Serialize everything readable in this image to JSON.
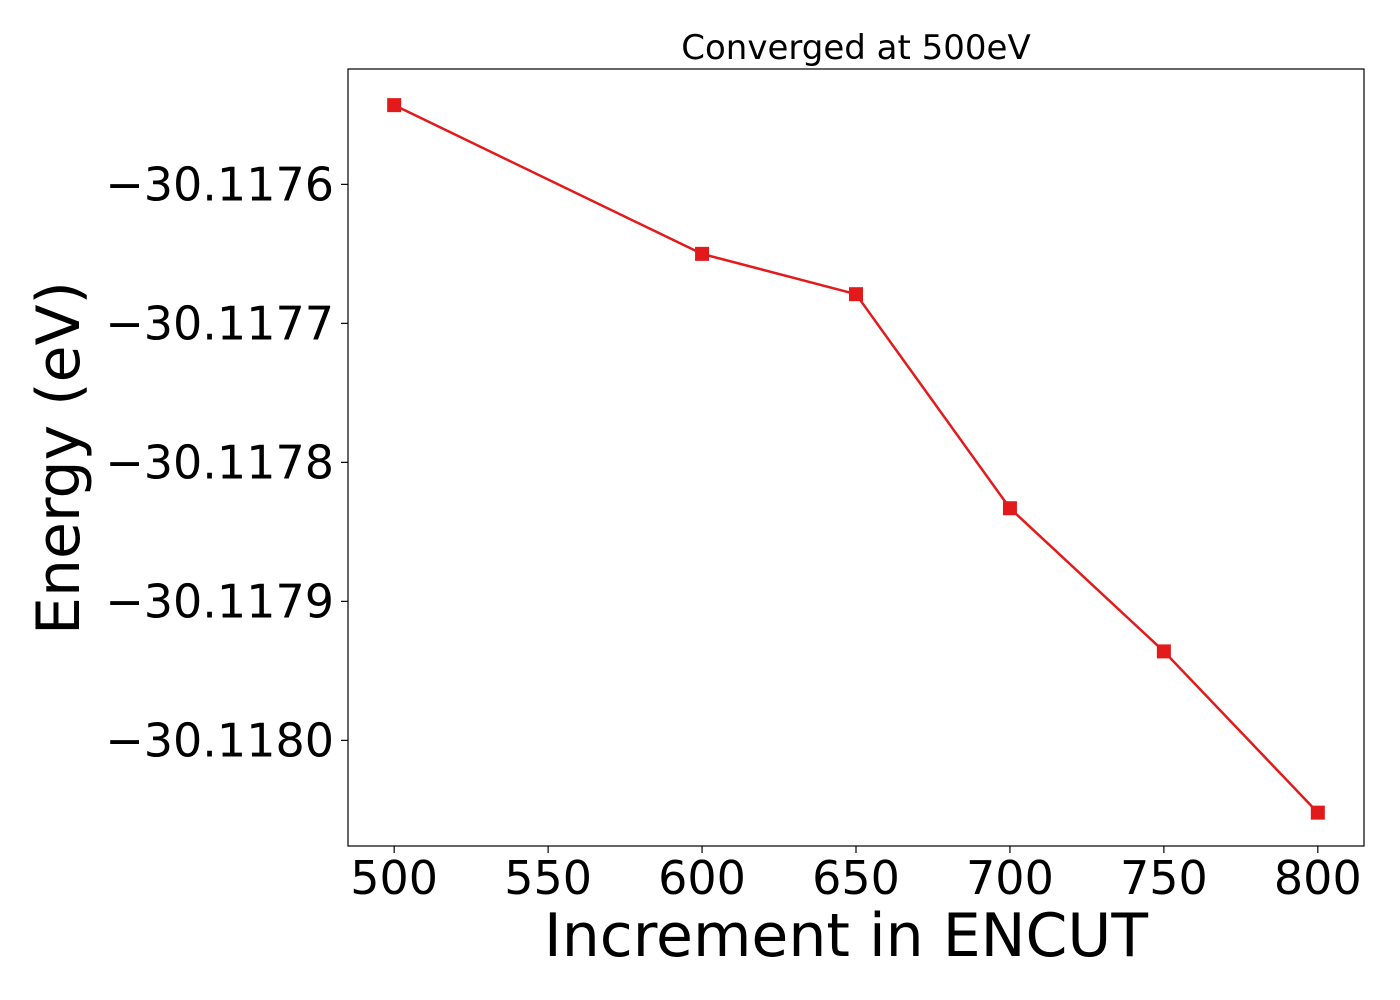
{
  "chart_data": {
    "type": "line",
    "title": "Converged at 500eV",
    "xlabel": "Increment in ENCUT",
    "ylabel": "Energy (eV)",
    "x": [
      500,
      600,
      650,
      700,
      750,
      800
    ],
    "series": [
      {
        "values": [
          -30.117543,
          -30.11765,
          -30.117679,
          -30.117833,
          -30.117936,
          -30.118052
        ],
        "color": "#e31a1c",
        "marker": "square"
      }
    ],
    "xlim": [
      485,
      815
    ],
    "ylim": [
      -30.118076,
      -30.117517
    ],
    "xticks": [
      500,
      550,
      600,
      650,
      700,
      750,
      800
    ],
    "xtick_labels": [
      "500",
      "550",
      "600",
      "650",
      "700",
      "750",
      "800"
    ],
    "yticks": [
      -30.1176,
      -30.1177,
      -30.1178,
      -30.1179,
      -30.118
    ],
    "ytick_labels": [
      "−30.1176",
      "−30.1177",
      "−30.1178",
      "−30.1179",
      "−30.1180"
    ],
    "grid": false,
    "legend": "none"
  }
}
